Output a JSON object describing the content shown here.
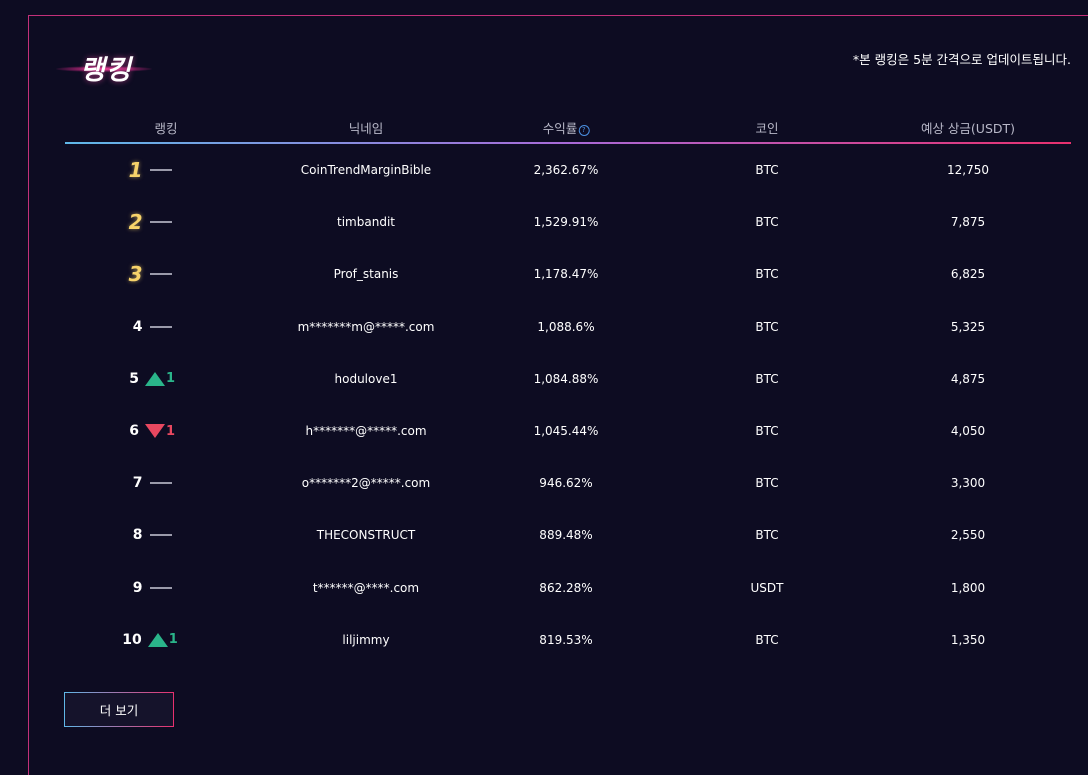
{
  "title": "랭킹",
  "notice": "*본 랭킹은 5분 간격으로 업데이트됩니다.",
  "columns": {
    "rank": "랭킹",
    "nickname": "닉네임",
    "roi": "수익률",
    "coin": "코인",
    "prize": "예상 상금(USDT)"
  },
  "colors": {
    "accent_pink": "#c2307a",
    "gold": "#f7d36a",
    "up": "#2ab58a",
    "down": "#e84860"
  },
  "rows": [
    {
      "rank": "1",
      "move": "none",
      "move_value": "",
      "nickname": "CoinTrendMarginBible",
      "roi": "2,362.67%",
      "coin": "BTC",
      "prize": "12,750"
    },
    {
      "rank": "2",
      "move": "none",
      "move_value": "",
      "nickname": "timbandit",
      "roi": "1,529.91%",
      "coin": "BTC",
      "prize": "7,875"
    },
    {
      "rank": "3",
      "move": "none",
      "move_value": "",
      "nickname": "Prof_stanis",
      "roi": "1,178.47%",
      "coin": "BTC",
      "prize": "6,825"
    },
    {
      "rank": "4",
      "move": "none",
      "move_value": "",
      "nickname": "m*******m@*****.com",
      "roi": "1,088.6%",
      "coin": "BTC",
      "prize": "5,325"
    },
    {
      "rank": "5",
      "move": "up",
      "move_value": "1",
      "nickname": "hodulove1",
      "roi": "1,084.88%",
      "coin": "BTC",
      "prize": "4,875"
    },
    {
      "rank": "6",
      "move": "down",
      "move_value": "1",
      "nickname": "h*******@*****.com",
      "roi": "1,045.44%",
      "coin": "BTC",
      "prize": "4,050"
    },
    {
      "rank": "7",
      "move": "none",
      "move_value": "",
      "nickname": "o*******2@*****.com",
      "roi": "946.62%",
      "coin": "BTC",
      "prize": "3,300"
    },
    {
      "rank": "8",
      "move": "none",
      "move_value": "",
      "nickname": "THECONSTRUCT",
      "roi": "889.48%",
      "coin": "BTC",
      "prize": "2,550"
    },
    {
      "rank": "9",
      "move": "none",
      "move_value": "",
      "nickname": "t******@****.com",
      "roi": "862.28%",
      "coin": "USDT",
      "prize": "1,800"
    },
    {
      "rank": "10",
      "move": "up",
      "move_value": "1",
      "nickname": "liljimmy",
      "roi": "819.53%",
      "coin": "BTC",
      "prize": "1,350"
    }
  ],
  "more_button": "더 보기"
}
